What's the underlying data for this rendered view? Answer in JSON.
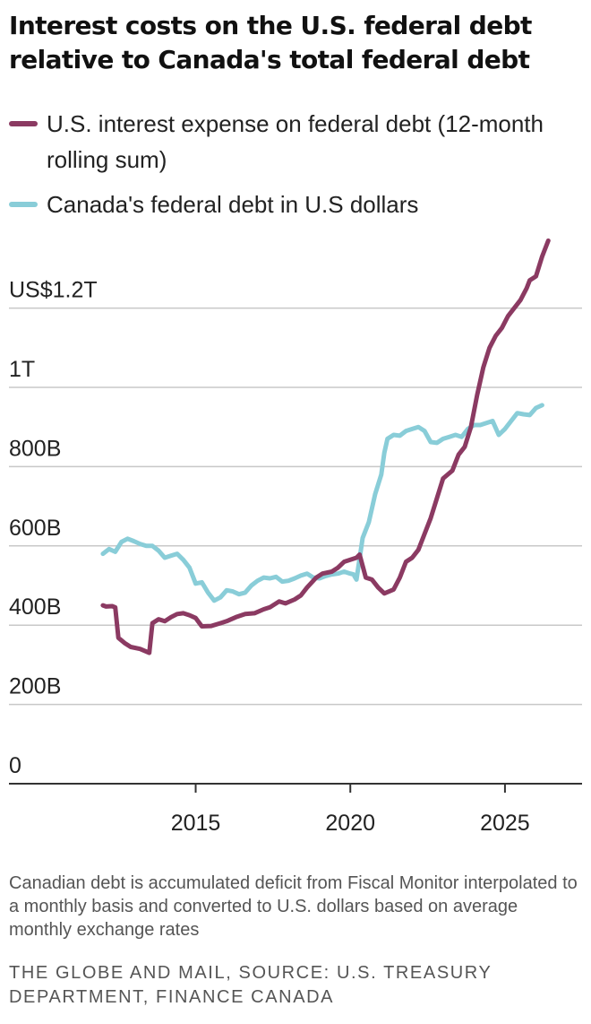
{
  "chart_data": {
    "type": "line",
    "title": "Interest costs on the U.S. federal debt relative to Canada's total federal debt",
    "xlabel": "",
    "ylabel": "",
    "x_unit": "year",
    "y_unit": "billions of U.S. dollars",
    "xlim": [
      2011.8,
      2027.0
    ],
    "ylim": [
      0,
      1380
    ],
    "xticks": [
      2015,
      2020,
      2025
    ],
    "xtick_labels": [
      "2015",
      "2020",
      "2025"
    ],
    "yticks": [
      0,
      200,
      400,
      600,
      800,
      1000,
      1200
    ],
    "ytick_labels": [
      "0",
      "200B",
      "400B",
      "600B",
      "800B",
      "1T",
      "US$1.2T"
    ],
    "grid": "horizontal",
    "legend_position": "top",
    "series": [
      {
        "name": "U.S. interest expense on federal debt (12-month rolling sum)",
        "color": "#8b3a62",
        "x": [
          2012.0,
          2012.1,
          2012.3,
          2012.4,
          2012.5,
          2012.7,
          2012.9,
          2013.2,
          2013.5,
          2013.6,
          2013.8,
          2014.0,
          2014.2,
          2014.4,
          2014.6,
          2014.8,
          2015.0,
          2015.2,
          2015.5,
          2015.8,
          2016.0,
          2016.3,
          2016.6,
          2016.9,
          2017.2,
          2017.4,
          2017.7,
          2017.9,
          2018.2,
          2018.4,
          2018.6,
          2018.9,
          2019.1,
          2019.4,
          2019.6,
          2019.8,
          2020.0,
          2020.2,
          2020.3,
          2020.5,
          2020.7,
          2020.9,
          2021.1,
          2021.4,
          2021.6,
          2021.8,
          2022.0,
          2022.2,
          2022.4,
          2022.6,
          2022.8,
          2023.0,
          2023.3,
          2023.5,
          2023.7,
          2023.9,
          2024.1,
          2024.3,
          2024.5,
          2024.7,
          2024.9,
          2025.1,
          2025.3,
          2025.5,
          2025.7,
          2025.8,
          2026.0,
          2026.2,
          2026.4
        ],
        "values": [
          450,
          447,
          448,
          445,
          368,
          355,
          345,
          340,
          330,
          405,
          415,
          410,
          420,
          428,
          430,
          425,
          418,
          397,
          398,
          405,
          410,
          420,
          428,
          430,
          440,
          445,
          460,
          455,
          465,
          475,
          495,
          520,
          530,
          535,
          545,
          560,
          565,
          570,
          578,
          520,
          515,
          495,
          480,
          490,
          520,
          560,
          570,
          590,
          630,
          670,
          720,
          770,
          790,
          830,
          850,
          900,
          980,
          1050,
          1100,
          1130,
          1150,
          1180,
          1200,
          1220,
          1250,
          1270,
          1280,
          1330,
          1370
        ]
      },
      {
        "name": "Canada's federal debt in U.S dollars",
        "color": "#89cdd8",
        "x": [
          2012.0,
          2012.2,
          2012.4,
          2012.6,
          2012.8,
          2013.0,
          2013.2,
          2013.4,
          2013.6,
          2013.8,
          2014.0,
          2014.2,
          2014.4,
          2014.6,
          2014.8,
          2015.0,
          2015.2,
          2015.4,
          2015.6,
          2015.8,
          2016.0,
          2016.2,
          2016.4,
          2016.6,
          2016.8,
          2017.0,
          2017.2,
          2017.4,
          2017.6,
          2017.8,
          2018.0,
          2018.2,
          2018.4,
          2018.6,
          2018.8,
          2019.0,
          2019.2,
          2019.4,
          2019.6,
          2019.8,
          2020.0,
          2020.1,
          2020.2,
          2020.4,
          2020.6,
          2020.8,
          2021.0,
          2021.1,
          2021.2,
          2021.4,
          2021.6,
          2021.8,
          2022.0,
          2022.2,
          2022.4,
          2022.6,
          2022.8,
          2023.0,
          2023.2,
          2023.4,
          2023.6,
          2023.8,
          2024.0,
          2024.2,
          2024.4,
          2024.6,
          2024.8,
          2025.0,
          2025.2,
          2025.4,
          2025.6,
          2025.8,
          2026.0,
          2026.2
        ],
        "values": [
          580,
          592,
          585,
          610,
          618,
          612,
          605,
          600,
          600,
          588,
          570,
          575,
          580,
          565,
          545,
          505,
          508,
          482,
          462,
          470,
          488,
          485,
          478,
          482,
          500,
          512,
          520,
          518,
          522,
          510,
          512,
          518,
          525,
          530,
          520,
          518,
          524,
          528,
          530,
          535,
          530,
          528,
          515,
          620,
          660,
          730,
          780,
          835,
          870,
          880,
          878,
          890,
          895,
          900,
          890,
          862,
          860,
          870,
          875,
          880,
          875,
          895,
          905,
          905,
          910,
          915,
          880,
          895,
          915,
          935,
          932,
          930,
          948,
          955
        ]
      }
    ],
    "annotations": []
  },
  "legend": {
    "items": [
      {
        "label": "U.S. interest expense on federal debt (12-month rolling sum)",
        "color": "#8b3a62"
      },
      {
        "label": "Canada's federal debt in U.S dollars",
        "color": "#89cdd8"
      }
    ]
  },
  "footer": {
    "note": "Canadian debt is accumulated deficit from Fiscal Monitor interpolated to a monthly basis and converted to U.S. dollars based on average monthly exchange rates",
    "source": "THE GLOBE AND MAIL, SOURCE: U.S. TREASURY DEPARTMENT, FINANCE CANADA"
  },
  "colors": {
    "gridline": "#c8c8c8",
    "axis": "#333333",
    "text": "#222222"
  }
}
